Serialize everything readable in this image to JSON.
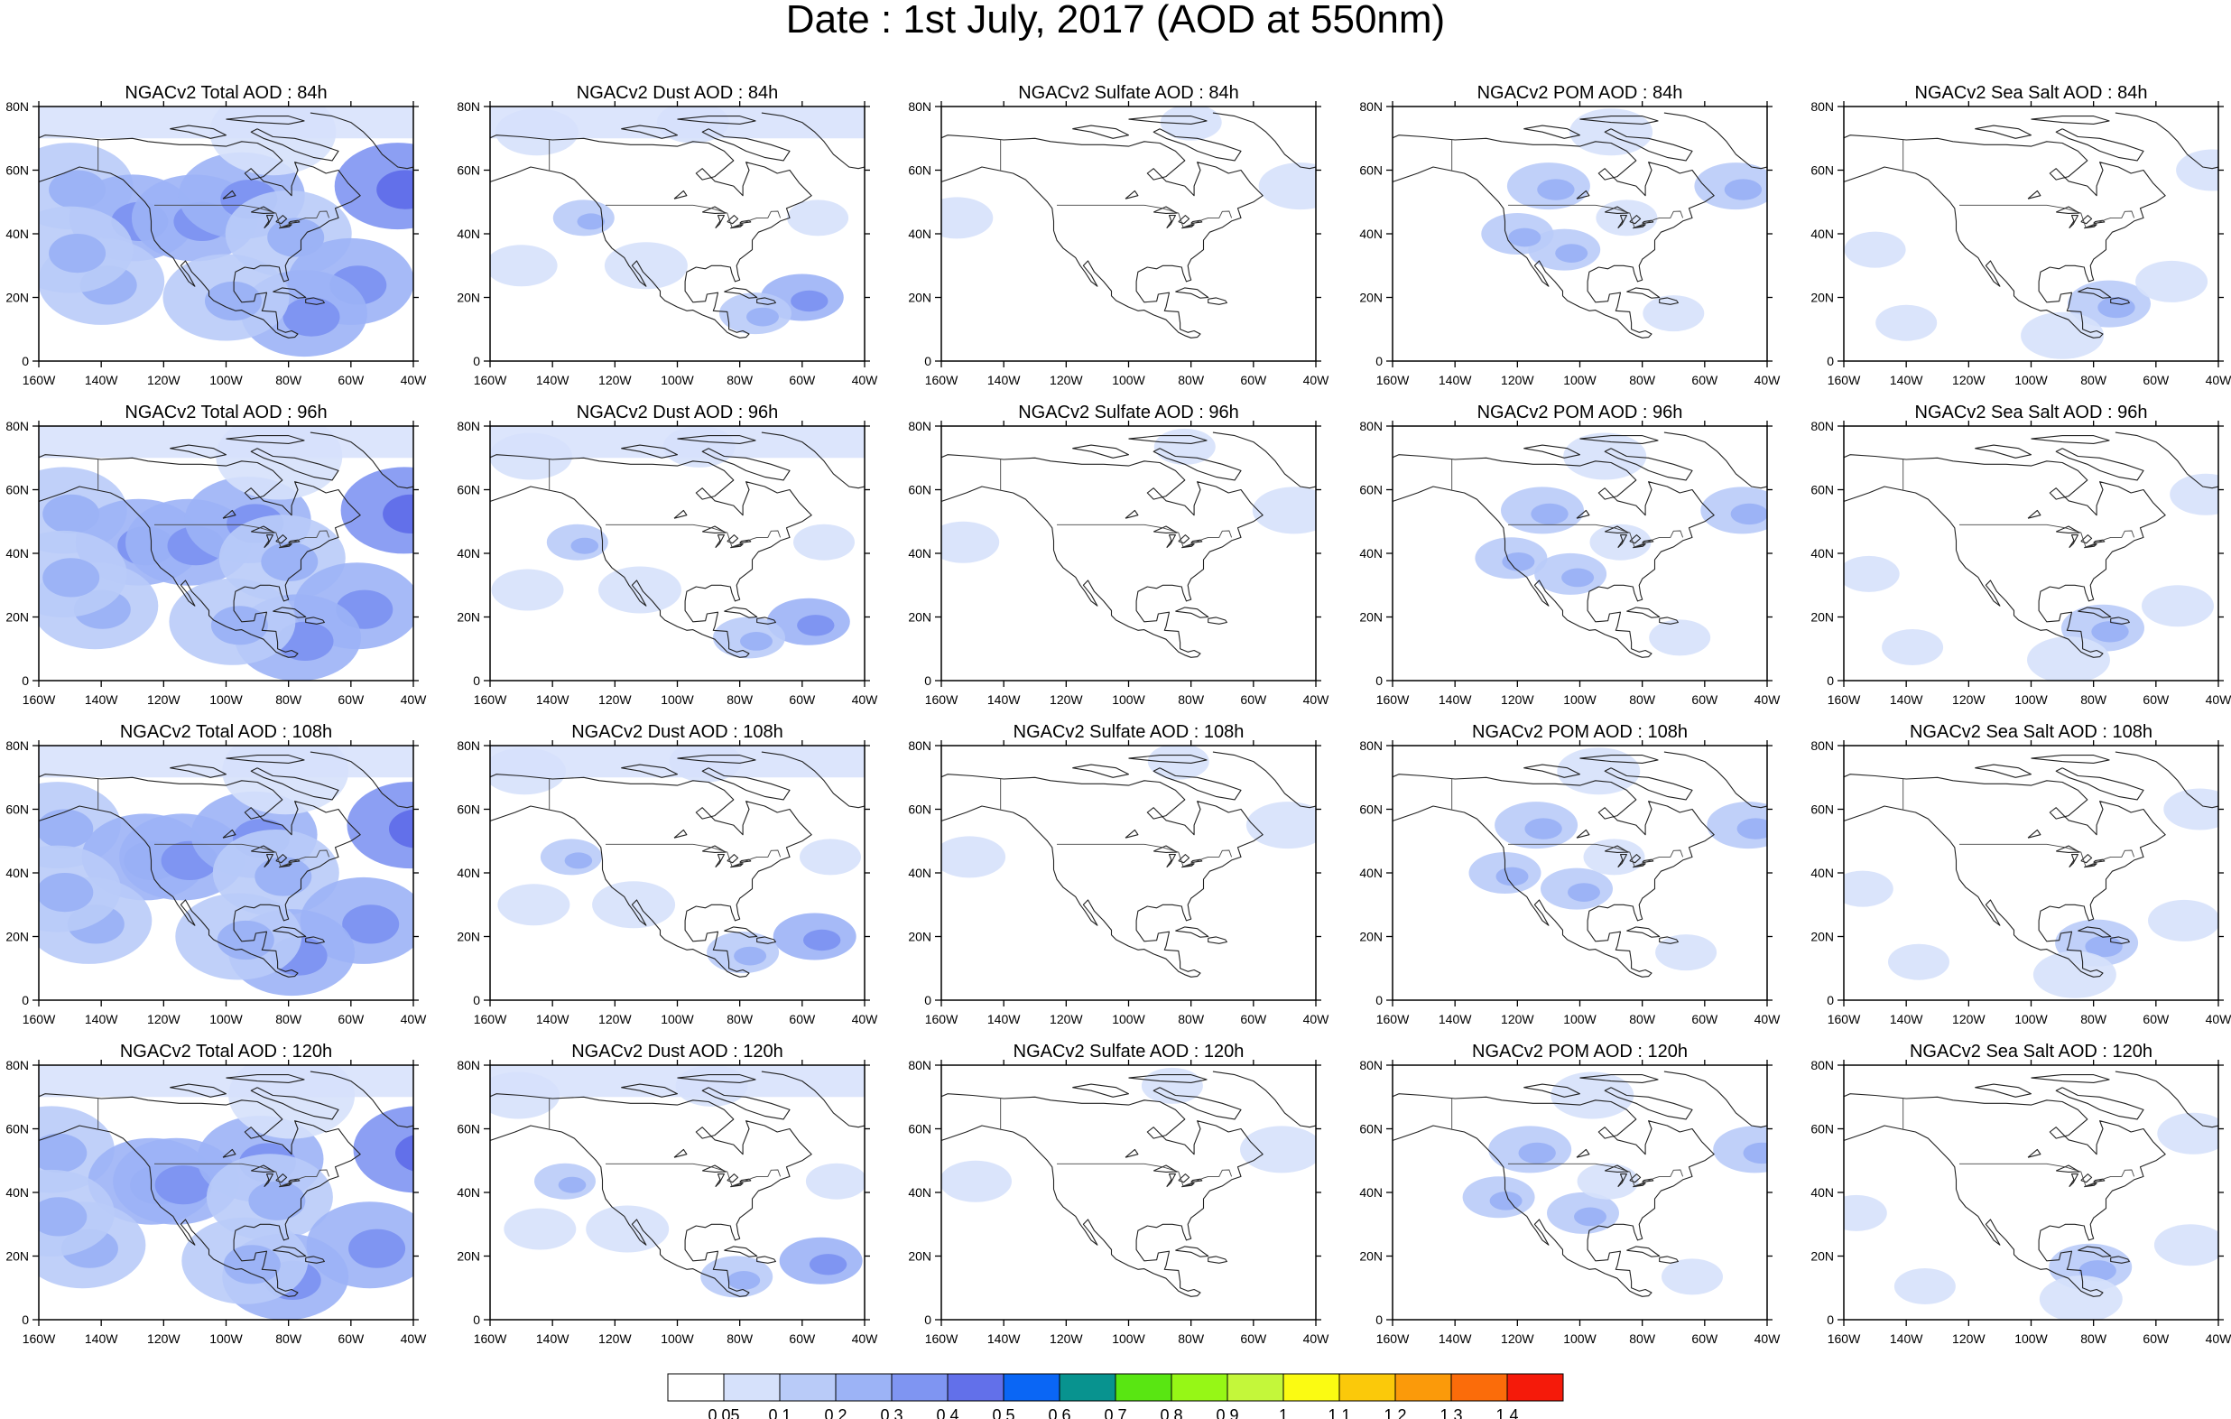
{
  "title": "Date : 1st July, 2017 (AOD at 550nm)",
  "colors": {
    "coastline": "#222222",
    "levels": [
      "#ffffff",
      "#d6e1fb",
      "#b9cbf8",
      "#9cb3f6",
      "#7f95f2",
      "#6270ea",
      "#0a66f5",
      "#08938f",
      "#59e612",
      "#96f716",
      "#c4f73a",
      "#fbfb12",
      "#fbc90a",
      "#fb9a0a",
      "#fb6c0a",
      "#f51a0a"
    ]
  },
  "colorbar": {
    "labels": [
      "0.05",
      "0.1",
      "0.2",
      "0.3",
      "0.4",
      "0.5",
      "0.6",
      "0.7",
      "0.8",
      "0.9",
      "1",
      "1.1",
      "1.2",
      "1.3",
      "1.4"
    ]
  },
  "axes": {
    "x_ticks": [
      "160W",
      "140W",
      "120W",
      "100W",
      "80W",
      "60W",
      "40W"
    ],
    "y_ticks": [
      "80N",
      "60N",
      "40N",
      "20N",
      "0"
    ]
  },
  "panels": [
    [
      "NGACv2 Total AOD : 84h",
      "NGACv2 Dust AOD : 84h",
      "NGACv2 Sulfate AOD : 84h",
      "NGACv2 POM AOD : 84h",
      "NGACv2 Sea Salt AOD : 84h"
    ],
    [
      "NGACv2 Total AOD : 96h",
      "NGACv2 Dust AOD : 96h",
      "NGACv2 Sulfate AOD : 96h",
      "NGACv2 POM AOD : 96h",
      "NGACv2 Sea Salt AOD : 96h"
    ],
    [
      "NGACv2 Total AOD : 108h",
      "NGACv2 Dust AOD : 108h",
      "NGACv2 Sulfate AOD : 108h",
      "NGACv2 POM AOD : 108h",
      "NGACv2 Sea Salt AOD : 108h"
    ],
    [
      "NGACv2 Total AOD : 120h",
      "NGACv2 Dust AOD : 120h",
      "NGACv2 Sulfate AOD : 120h",
      "NGACv2 POM AOD : 120h",
      "NGACv2 Sea Salt  AOD : 120h"
    ]
  ],
  "aerosol_patterns": {
    "Total": [
      {
        "lon": -150,
        "lat": 55,
        "level": 2
      },
      {
        "lon": -130,
        "lat": 45,
        "level": 3
      },
      {
        "lon": -110,
        "lat": 45,
        "level": 3
      },
      {
        "lon": -95,
        "lat": 52,
        "level": 3
      },
      {
        "lon": -80,
        "lat": 40,
        "level": 2
      },
      {
        "lon": -60,
        "lat": 25,
        "level": 3
      },
      {
        "lon": -75,
        "lat": 15,
        "level": 3
      },
      {
        "lon": -45,
        "lat": 55,
        "level": 4
      },
      {
        "lon": -140,
        "lat": 25,
        "level": 2
      },
      {
        "lon": -100,
        "lat": 20,
        "level": 2
      },
      {
        "lon": -150,
        "lat": 35,
        "level": 2
      },
      {
        "lon": -85,
        "lat": 72,
        "level": 1
      }
    ],
    "Dust": [
      {
        "lon": -145,
        "lat": 72,
        "level": 1
      },
      {
        "lon": -95,
        "lat": 75,
        "level": 1
      },
      {
        "lon": -130,
        "lat": 45,
        "level": 2
      },
      {
        "lon": -60,
        "lat": 20,
        "level": 3
      },
      {
        "lon": -75,
        "lat": 15,
        "level": 2
      },
      {
        "lon": -55,
        "lat": 45,
        "level": 1
      },
      {
        "lon": -110,
        "lat": 30,
        "level": 1
      },
      {
        "lon": -150,
        "lat": 30,
        "level": 1
      }
    ],
    "Sulfate": [
      {
        "lon": -45,
        "lat": 55,
        "level": 1
      },
      {
        "lon": -155,
        "lat": 45,
        "level": 1
      },
      {
        "lon": -80,
        "lat": 75,
        "level": 1
      }
    ],
    "POM": [
      {
        "lon": -110,
        "lat": 55,
        "level": 2
      },
      {
        "lon": -105,
        "lat": 35,
        "level": 2
      },
      {
        "lon": -85,
        "lat": 45,
        "level": 1
      },
      {
        "lon": -50,
        "lat": 55,
        "level": 2
      },
      {
        "lon": -120,
        "lat": 40,
        "level": 2
      },
      {
        "lon": -70,
        "lat": 15,
        "level": 1
      },
      {
        "lon": -90,
        "lat": 72,
        "level": 1
      }
    ],
    "SeaSalt": [
      {
        "lon": -75,
        "lat": 18,
        "level": 2
      },
      {
        "lon": -55,
        "lat": 25,
        "level": 1
      },
      {
        "lon": -150,
        "lat": 35,
        "level": 1
      },
      {
        "lon": -90,
        "lat": 8,
        "level": 1
      },
      {
        "lon": -42,
        "lat": 60,
        "level": 1
      },
      {
        "lon": -140,
        "lat": 12,
        "level": 1
      }
    ]
  }
}
